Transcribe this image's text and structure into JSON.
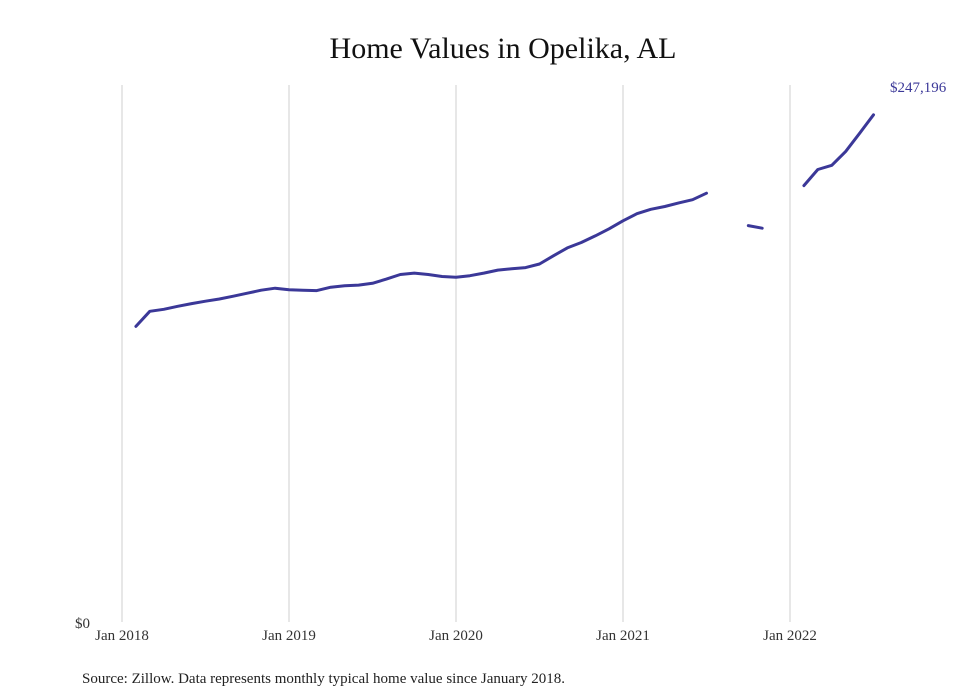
{
  "chart_data": {
    "type": "line",
    "title": "Home Values in Opelika, AL",
    "y_zero_label": "$0",
    "xlabel": "",
    "ylabel": "",
    "x_ticks": [
      "Jan 2018",
      "Jan 2019",
      "Jan 2020",
      "Jan 2021",
      "Jan 2022"
    ],
    "xlim": [
      "2018-01",
      "2022-08"
    ],
    "ylim": [
      0,
      262000
    ],
    "grid": "vertical",
    "line_color": "#3b3898",
    "end_label": "$247,196",
    "source": "Source: Zillow. Data represents monthly typical home value since January 2018.",
    "series": [
      {
        "x": [
          "2018-02",
          "2018-03",
          "2018-04",
          "2018-05",
          "2018-06",
          "2018-07",
          "2018-08",
          "2018-09",
          "2018-10",
          "2018-11",
          "2018-12",
          "2019-01",
          "2019-02",
          "2019-03",
          "2019-04",
          "2019-05",
          "2019-06",
          "2019-07",
          "2019-08",
          "2019-09",
          "2019-10",
          "2019-11",
          "2019-12",
          "2020-01",
          "2020-02",
          "2020-03",
          "2020-04",
          "2020-05",
          "2020-06",
          "2020-07",
          "2020-08",
          "2020-09",
          "2020-10",
          "2020-11",
          "2020-12",
          "2021-01",
          "2021-02",
          "2021-03",
          "2021-04",
          "2021-05",
          "2021-06",
          "2021-07",
          "2021-08",
          "2021-09",
          "2021-10",
          "2021-11",
          "2021-12",
          "2022-01",
          "2022-02",
          "2022-03",
          "2022-04",
          "2022-05",
          "2022-06",
          "2022-07"
        ],
        "values": [
          142000,
          149500,
          150500,
          152000,
          153300,
          154500,
          155600,
          157000,
          158500,
          160000,
          161000,
          160200,
          160000,
          159800,
          161500,
          162200,
          162500,
          163400,
          165500,
          167800,
          168500,
          167800,
          166800,
          166400,
          167200,
          168500,
          170000,
          170600,
          171200,
          173000,
          177100,
          181000,
          183700,
          187000,
          190500,
          194500,
          198000,
          200200,
          201600,
          203400,
          205000,
          208200,
          null,
          null,
          192100,
          190800,
          null,
          null,
          212000,
          220000,
          222100,
          229000,
          238000,
          247196
        ]
      }
    ]
  }
}
